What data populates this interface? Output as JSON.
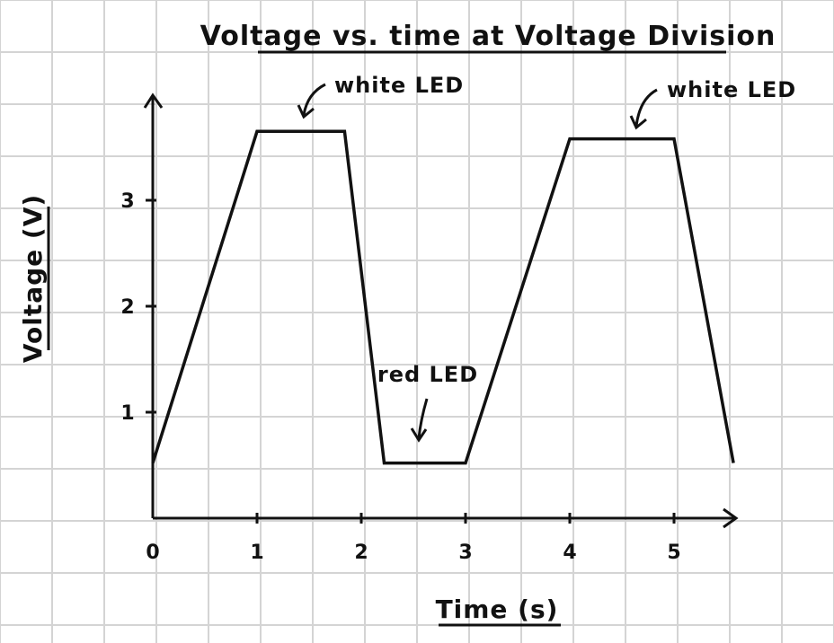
{
  "chart_data": {
    "type": "line",
    "title": "Voltage vs. time at Voltage Division",
    "xlabel": "Time (s)",
    "ylabel": "Voltage (V)",
    "xlim": [
      0,
      5.7
    ],
    "ylim": [
      0,
      3.9
    ],
    "x_ticks": [
      "0",
      "1",
      "2",
      "3",
      "4",
      "5"
    ],
    "y_ticks": [
      "1",
      "2",
      "3"
    ],
    "grid": true,
    "series": [
      {
        "x": [
          0,
          1,
          1.84,
          2.22,
          3,
          4,
          5,
          5.57
        ],
        "y": [
          0.52,
          3.65,
          3.65,
          0.52,
          0.52,
          3.58,
          3.58,
          0.52
        ]
      }
    ],
    "annotations": [
      {
        "text": "white LED",
        "x": 1.5,
        "y": 3.65
      },
      {
        "text": "red LED",
        "x": 2.6,
        "y": 0.52
      },
      {
        "text": "white LED",
        "x": 4.65,
        "y": 3.58
      }
    ]
  },
  "colors": {
    "line": "#111111",
    "grid": "#d4d4d4",
    "background": "#ffffff"
  }
}
